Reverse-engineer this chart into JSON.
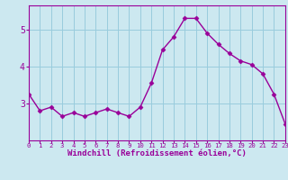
{
  "x": [
    0,
    1,
    2,
    3,
    4,
    5,
    6,
    7,
    8,
    9,
    10,
    11,
    12,
    13,
    14,
    15,
    16,
    17,
    18,
    19,
    20,
    21,
    22,
    23
  ],
  "y": [
    3.25,
    2.8,
    2.9,
    2.65,
    2.75,
    2.65,
    2.75,
    2.85,
    2.75,
    2.65,
    2.9,
    3.55,
    4.45,
    4.8,
    5.3,
    5.3,
    4.9,
    4.6,
    4.35,
    4.15,
    4.05,
    3.8,
    3.25,
    2.45
  ],
  "line_color": "#990099",
  "marker": "D",
  "marker_size": 2.5,
  "line_width": 1.0,
  "background_color": "#cce8f0",
  "grid_color": "#99ccdd",
  "xlabel": "Windchill (Refroidissement éolien,°C)",
  "xlabel_color": "#990099",
  "tick_color": "#990099",
  "ylim": [
    2.0,
    5.65
  ],
  "xlim": [
    0,
    23
  ],
  "yticks": [
    3,
    4,
    5
  ],
  "xticks": [
    0,
    1,
    2,
    3,
    4,
    5,
    6,
    7,
    8,
    9,
    10,
    11,
    12,
    13,
    14,
    15,
    16,
    17,
    18,
    19,
    20,
    21,
    22,
    23
  ],
  "border_color": "#990099",
  "xlabel_fontsize": 6.5,
  "xtick_fontsize": 5.2,
  "ytick_fontsize": 7.0
}
